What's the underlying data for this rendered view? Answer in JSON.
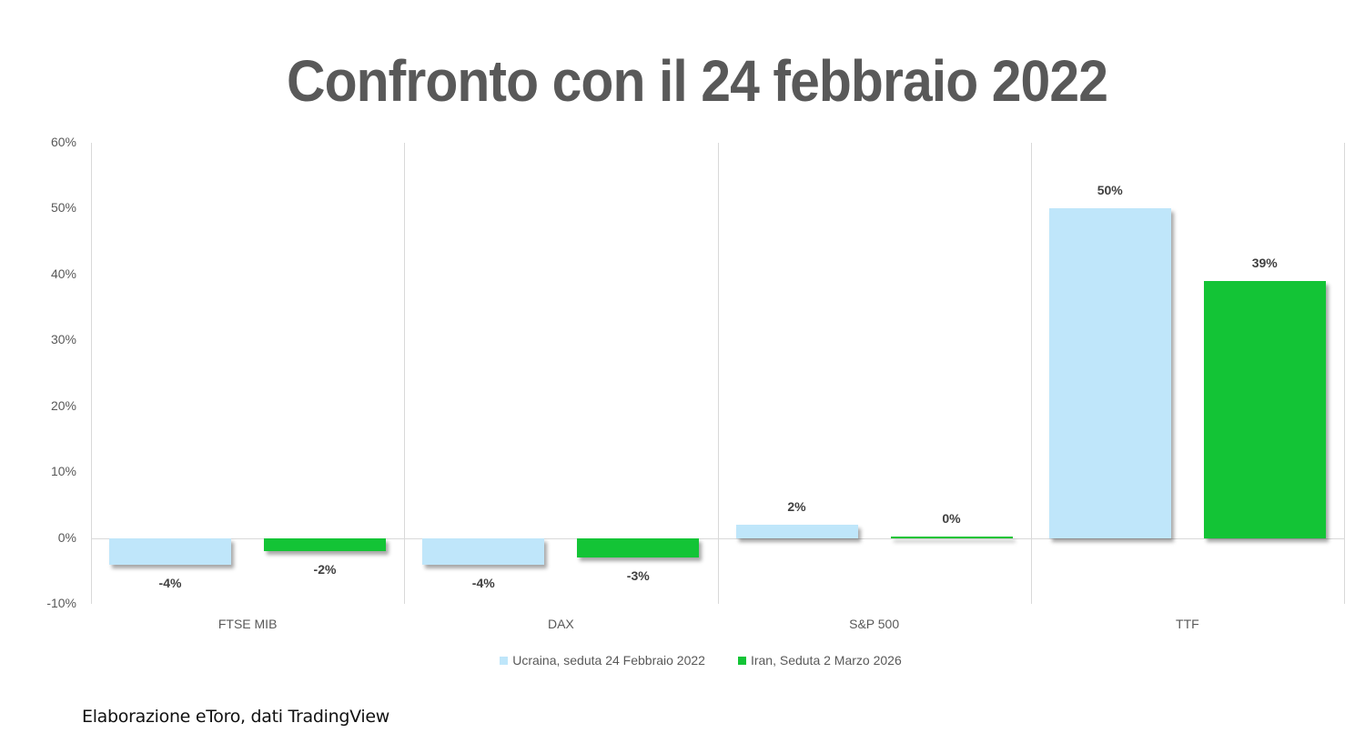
{
  "chart_data": {
    "type": "bar",
    "title": "Confronto con il 24 febbraio 2022",
    "categories": [
      "FTSE MIB",
      "DAX",
      "S&P 500",
      "TTF"
    ],
    "series": [
      {
        "name": "Ucraina, seduta 24 Febbraio 2022",
        "color": "#bfe6fa",
        "values": [
          -4,
          -4,
          2,
          50
        ],
        "labels": [
          "-4%",
          "-4%",
          "2%",
          "50%"
        ]
      },
      {
        "name": "Iran, Seduta 2 Marzo 2026",
        "color": "#13c436",
        "values": [
          -2,
          -3,
          0,
          39
        ],
        "labels": [
          "-2%",
          "-3%",
          "0%",
          "39%"
        ]
      }
    ],
    "xlabel": "",
    "ylabel": "",
    "ylim": [
      -10,
      60
    ],
    "yticks": [
      "60%",
      "50%",
      "40%",
      "30%",
      "20%",
      "10%",
      "0%",
      "-10%"
    ],
    "grid": false,
    "legend_position": "bottom"
  },
  "title": "Confronto con il 24 febbraio 2022",
  "legend": [
    {
      "label": "Ucraina, seduta 24 Febbraio 2022",
      "color": "#bfe6fa"
    },
    {
      "label": "Iran, Seduta 2 Marzo 2026",
      "color": "#13c436"
    }
  ],
  "source": "Elaborazione eToro, dati TradingView"
}
